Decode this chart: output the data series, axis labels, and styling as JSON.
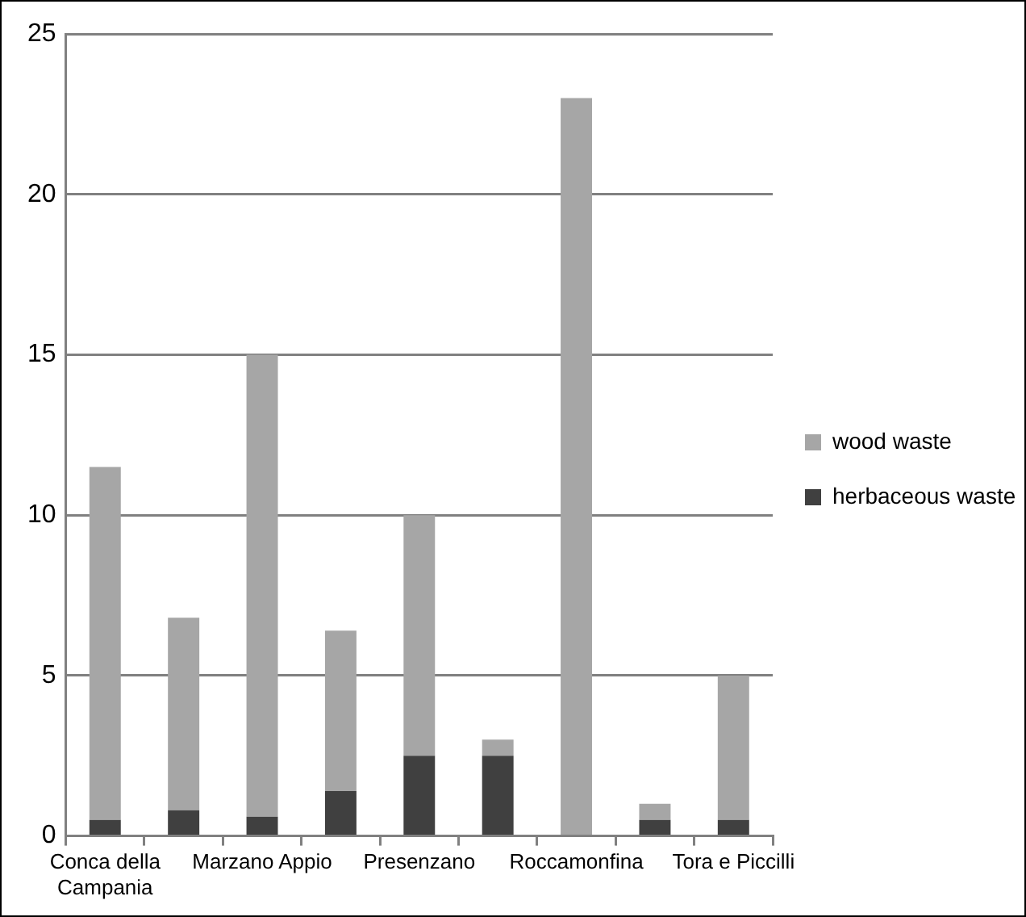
{
  "chart_data": {
    "type": "bar",
    "stacked": true,
    "categories": [
      "Conca della Campania",
      null,
      "Marzano Appio",
      null,
      "Presenzano",
      null,
      "Roccamonfina",
      null,
      "Tora e Piccilli"
    ],
    "series": [
      {
        "name": "herbaceous waste",
        "color": "#404040",
        "values": [
          0.5,
          0.8,
          0.6,
          1.4,
          2.5,
          2.5,
          0,
          0.5,
          0.5
        ]
      },
      {
        "name": "wood waste",
        "color": "#a6a6a6",
        "values": [
          11.0,
          6.0,
          14.4,
          5.0,
          7.5,
          0.5,
          23,
          0.5,
          4.5
        ]
      }
    ],
    "ylim": [
      0,
      25
    ],
    "yticks": [
      0,
      5,
      10,
      15,
      20,
      25
    ],
    "grid": "y",
    "legend": "right"
  }
}
